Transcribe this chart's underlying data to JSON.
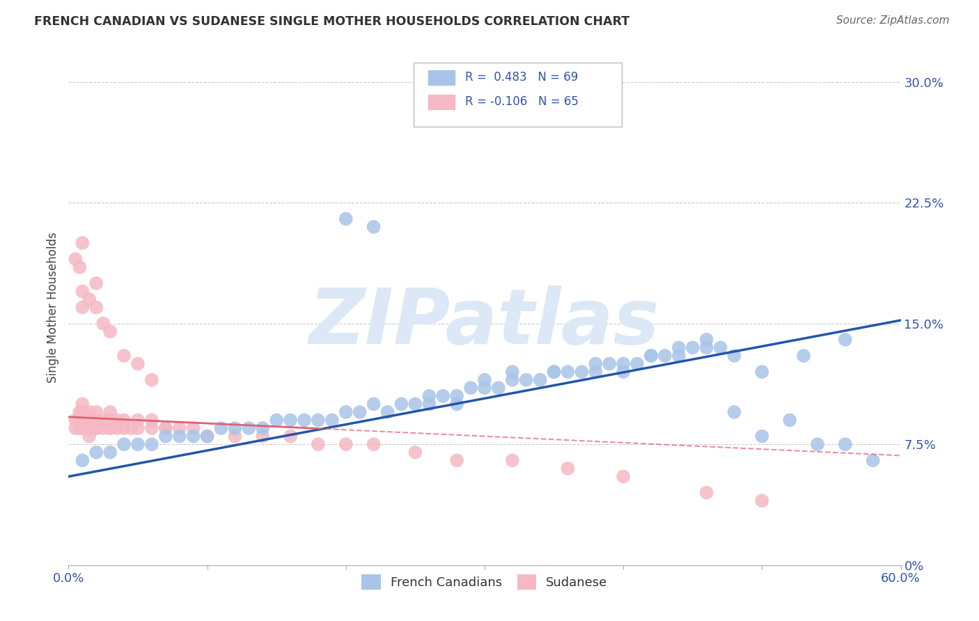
{
  "title": "FRENCH CANADIAN VS SUDANESE SINGLE MOTHER HOUSEHOLDS CORRELATION CHART",
  "source": "Source: ZipAtlas.com",
  "ylabel": "Single Mother Households",
  "xlim": [
    0.0,
    0.6
  ],
  "ylim": [
    0.0,
    0.32
  ],
  "xticks": [
    0.0,
    0.1,
    0.2,
    0.3,
    0.4,
    0.5,
    0.6
  ],
  "ytick_labels_right": [
    "0%",
    "7.5%",
    "15.0%",
    "22.5%",
    "30.0%"
  ],
  "yticks_right": [
    0.0,
    0.075,
    0.15,
    0.225,
    0.3
  ],
  "legend_r_blue": "R =  0.483",
  "legend_n_blue": "N = 69",
  "legend_r_pink": "R = -0.106",
  "legend_n_pink": "N = 65",
  "blue_color": "#a8c4e8",
  "pink_color": "#f5b8c4",
  "blue_line_color": "#2255aa",
  "pink_line_color": "#e06070",
  "watermark": "ZIPatlas",
  "watermark_color": "#dce8f5",
  "background_color": "#ffffff",
  "blue_x": [
    0.01,
    0.02,
    0.03,
    0.04,
    0.05,
    0.06,
    0.07,
    0.08,
    0.09,
    0.1,
    0.11,
    0.12,
    0.13,
    0.14,
    0.15,
    0.16,
    0.17,
    0.18,
    0.19,
    0.2,
    0.21,
    0.22,
    0.23,
    0.24,
    0.25,
    0.26,
    0.27,
    0.28,
    0.29,
    0.3,
    0.31,
    0.32,
    0.33,
    0.34,
    0.35,
    0.36,
    0.37,
    0.38,
    0.39,
    0.4,
    0.41,
    0.42,
    0.43,
    0.44,
    0.45,
    0.46,
    0.47,
    0.48,
    0.3,
    0.32,
    0.28,
    0.26,
    0.35,
    0.38,
    0.42,
    0.4,
    0.44,
    0.48,
    0.5,
    0.52,
    0.54,
    0.56,
    0.58,
    0.46,
    0.5,
    0.53,
    0.56,
    0.22,
    0.2
  ],
  "blue_y": [
    0.065,
    0.07,
    0.07,
    0.075,
    0.075,
    0.075,
    0.08,
    0.08,
    0.08,
    0.08,
    0.085,
    0.085,
    0.085,
    0.085,
    0.09,
    0.09,
    0.09,
    0.09,
    0.09,
    0.095,
    0.095,
    0.1,
    0.095,
    0.1,
    0.1,
    0.105,
    0.105,
    0.105,
    0.11,
    0.11,
    0.11,
    0.115,
    0.115,
    0.115,
    0.12,
    0.12,
    0.12,
    0.12,
    0.125,
    0.125,
    0.125,
    0.13,
    0.13,
    0.13,
    0.135,
    0.135,
    0.135,
    0.13,
    0.115,
    0.12,
    0.1,
    0.1,
    0.12,
    0.125,
    0.13,
    0.12,
    0.135,
    0.095,
    0.08,
    0.09,
    0.075,
    0.075,
    0.065,
    0.14,
    0.12,
    0.13,
    0.14,
    0.21,
    0.215
  ],
  "pink_x": [
    0.005,
    0.005,
    0.008,
    0.008,
    0.01,
    0.01,
    0.01,
    0.01,
    0.012,
    0.012,
    0.015,
    0.015,
    0.015,
    0.015,
    0.015,
    0.02,
    0.02,
    0.02,
    0.02,
    0.025,
    0.025,
    0.03,
    0.03,
    0.03,
    0.03,
    0.035,
    0.035,
    0.04,
    0.04,
    0.045,
    0.05,
    0.05,
    0.06,
    0.06,
    0.07,
    0.07,
    0.08,
    0.09,
    0.1,
    0.12,
    0.14,
    0.16,
    0.18,
    0.2,
    0.22,
    0.25,
    0.28,
    0.32,
    0.36,
    0.4,
    0.01,
    0.01,
    0.015,
    0.02,
    0.02,
    0.025,
    0.03,
    0.04,
    0.05,
    0.06,
    0.005,
    0.008,
    0.01,
    0.46,
    0.5
  ],
  "pink_y": [
    0.085,
    0.09,
    0.085,
    0.095,
    0.085,
    0.09,
    0.095,
    0.1,
    0.085,
    0.09,
    0.085,
    0.09,
    0.095,
    0.085,
    0.08,
    0.085,
    0.09,
    0.085,
    0.095,
    0.085,
    0.09,
    0.085,
    0.09,
    0.085,
    0.095,
    0.085,
    0.09,
    0.085,
    0.09,
    0.085,
    0.085,
    0.09,
    0.085,
    0.09,
    0.085,
    0.085,
    0.085,
    0.085,
    0.08,
    0.08,
    0.08,
    0.08,
    0.075,
    0.075,
    0.075,
    0.07,
    0.065,
    0.065,
    0.06,
    0.055,
    0.16,
    0.17,
    0.165,
    0.16,
    0.175,
    0.15,
    0.145,
    0.13,
    0.125,
    0.115,
    0.19,
    0.185,
    0.2,
    0.045,
    0.04
  ],
  "blue_trend_x0": 0.0,
  "blue_trend_y0": 0.055,
  "blue_trend_x1": 0.6,
  "blue_trend_y1": 0.152,
  "pink_trend_x0": 0.0,
  "pink_trend_y0": 0.092,
  "pink_trend_x1": 0.6,
  "pink_trend_y1": 0.068
}
